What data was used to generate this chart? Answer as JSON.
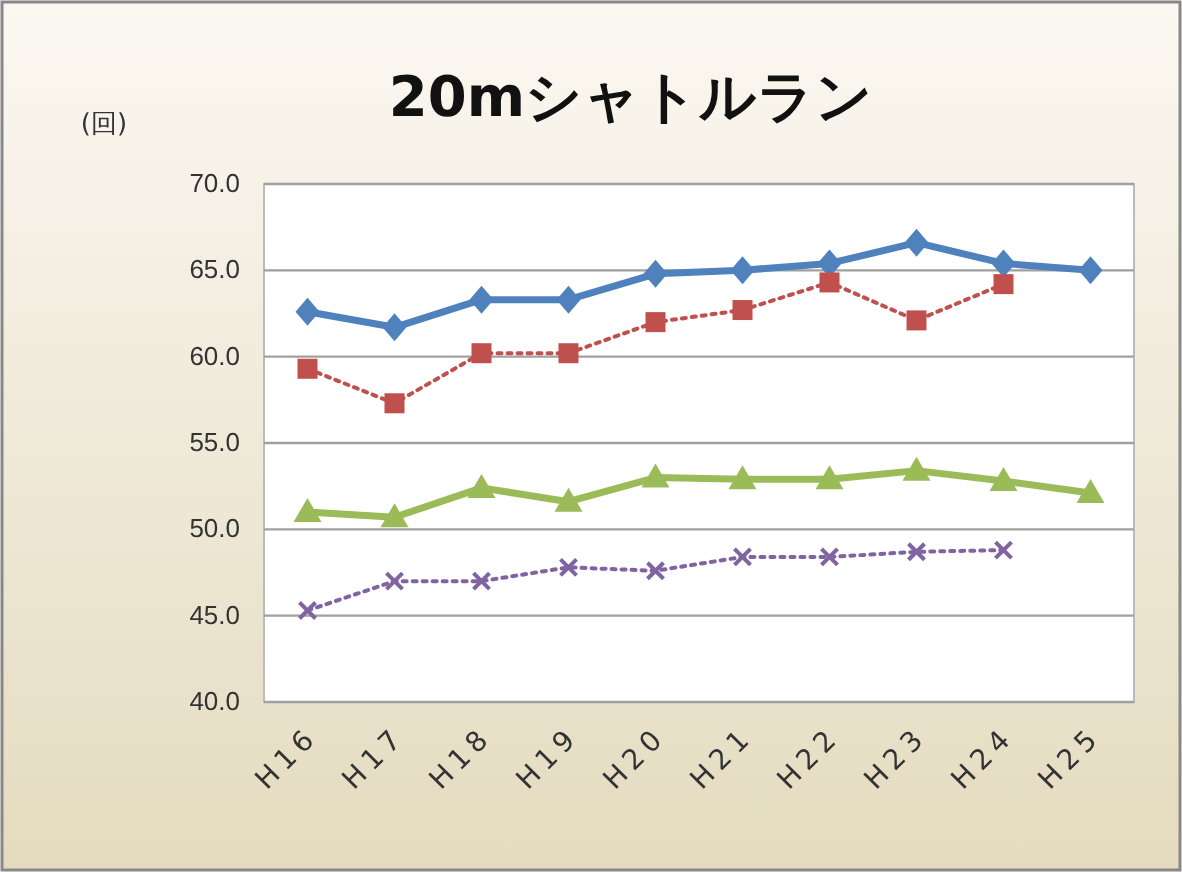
{
  "chart_data": {
    "type": "line",
    "title": "20mシャトルラン",
    "ylabel": "(回)",
    "categories": [
      "H16",
      "H17",
      "H18",
      "H19",
      "H20",
      "H21",
      "H22",
      "H23",
      "H24",
      "H25"
    ],
    "series": [
      {
        "color": "#4f81bd",
        "marker": "diamond",
        "line_style": "solid",
        "values": [
          62.6,
          61.7,
          63.3,
          63.3,
          64.8,
          65.0,
          65.4,
          66.6,
          65.4,
          65.0
        ]
      },
      {
        "color": "#c0504d",
        "marker": "square",
        "line_style": "dotted",
        "values": [
          59.3,
          57.3,
          60.2,
          60.2,
          62.0,
          62.7,
          64.3,
          62.1,
          64.2,
          null
        ]
      },
      {
        "color": "#9bbb59",
        "marker": "triangle",
        "line_style": "solid",
        "values": [
          51.0,
          50.7,
          52.4,
          51.6,
          53.0,
          52.9,
          52.9,
          53.4,
          52.8,
          52.1
        ]
      },
      {
        "color": "#8064a2",
        "marker": "cross",
        "line_style": "dotted",
        "values": [
          45.3,
          47.0,
          47.0,
          47.8,
          47.6,
          48.4,
          48.4,
          48.7,
          48.8,
          null
        ]
      }
    ],
    "ylim": [
      40,
      70
    ],
    "yticks": [
      {
        "value": 40,
        "label": "40.0"
      },
      {
        "value": 45,
        "label": "45.0"
      },
      {
        "value": 50,
        "label": "50.0"
      },
      {
        "value": 55,
        "label": "55.0"
      },
      {
        "value": 60,
        "label": "60.0"
      },
      {
        "value": 65,
        "label": "65.0"
      },
      {
        "value": 70,
        "label": "70.0"
      }
    ],
    "grid": "y"
  }
}
